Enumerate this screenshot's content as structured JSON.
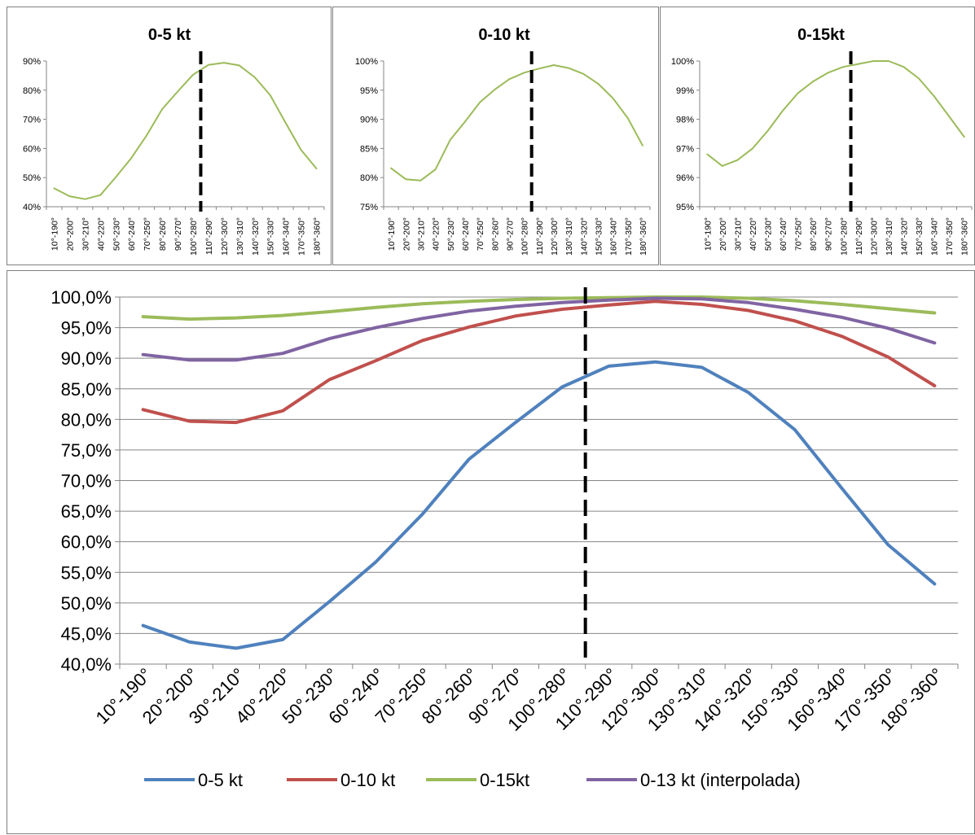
{
  "chart_data": [
    {
      "type": "line",
      "title": "0-5 kt",
      "categories": [
        "10°-190°",
        "20°-200°",
        "30°-210°",
        "40°-220°",
        "50°-230°",
        "60°-240°",
        "70°-250°",
        "80°-260°",
        "90°-270°",
        "100°-280°",
        "110°-290°",
        "120°-300°",
        "130°-310°",
        "140°-320°",
        "150°-330°",
        "160°-340°",
        "170°-350°",
        "180°-360°"
      ],
      "y_ticks": [
        "90%",
        "80%",
        "70%",
        "60%",
        "50%",
        "40%"
      ],
      "ylim": [
        40,
        90
      ],
      "series": [
        {
          "color": "#9bbb59",
          "values": [
            46.3,
            43.6,
            42.6,
            44.0,
            50.2,
            56.7,
            64.5,
            73.5,
            79.5,
            85.3,
            88.7,
            89.4,
            88.5,
            84.4,
            78.3,
            68.8,
            59.5,
            53.1
          ]
        }
      ],
      "marker_line": {
        "after_category": "100°-280°",
        "style": "dashed",
        "color": "#000000"
      }
    },
    {
      "type": "line",
      "title": "0-10 kt",
      "categories": [
        "10°-190°",
        "20°-200°",
        "30°-210°",
        "40°-220°",
        "50°-230°",
        "60°-240°",
        "70°-250°",
        "80°-260°",
        "90°-270°",
        "100°-280°",
        "110°-290°",
        "120°-300°",
        "130°-310°",
        "140°-320°",
        "150°-330°",
        "160°-340°",
        "170°-350°",
        "180°-360°"
      ],
      "y_ticks": [
        "100%",
        "95%",
        "90%",
        "85%",
        "80%",
        "75%"
      ],
      "ylim": [
        75,
        100
      ],
      "series": [
        {
          "color": "#9bbb59",
          "values": [
            81.6,
            79.7,
            79.5,
            81.4,
            86.5,
            89.6,
            92.9,
            95.1,
            96.9,
            98.0,
            98.7,
            99.3,
            98.8,
            97.8,
            96.1,
            93.6,
            90.2,
            85.5
          ]
        }
      ],
      "marker_line": {
        "after_category": "100°-280°",
        "style": "dashed",
        "color": "#000000"
      }
    },
    {
      "type": "line",
      "title": "0-15kt",
      "categories": [
        "10°-190°",
        "20°-200°",
        "30°-210°",
        "40°-220°",
        "50°-230°",
        "60°-240°",
        "70°-250°",
        "80°-260°",
        "90°-270°",
        "100°-280°",
        "110°-290°",
        "120°-300°",
        "130°-310°",
        "140°-320°",
        "150°-330°",
        "160°-340°",
        "170°-350°",
        "180°-360°"
      ],
      "y_ticks": [
        "100%",
        "99%",
        "98%",
        "97%",
        "96%",
        "95%"
      ],
      "ylim": [
        95,
        100
      ],
      "series": [
        {
          "color": "#9bbb59",
          "values": [
            96.8,
            96.4,
            96.6,
            97.0,
            97.6,
            98.3,
            98.9,
            99.3,
            99.6,
            99.8,
            99.9,
            100.0,
            100.0,
            99.8,
            99.4,
            98.8,
            98.1,
            97.4
          ]
        }
      ],
      "marker_line": {
        "after_category": "100°-280°",
        "style": "dashed",
        "color": "#000000"
      }
    },
    {
      "type": "line",
      "title": "",
      "categories": [
        "10°-190°",
        "20°-200°",
        "30°-210°",
        "40°-220°",
        "50°-230°",
        "60°-240°",
        "70°-250°",
        "80°-260°",
        "90°-270°",
        "100°-280°",
        "110°-290°",
        "120°-300°",
        "130°-310°",
        "140°-320°",
        "150°-330°",
        "160°-340°",
        "170°-350°",
        "180°-360°"
      ],
      "y_ticks": [
        "100,0%",
        "95,0%",
        "90,0%",
        "85,0%",
        "80,0%",
        "75,0%",
        "70,0%",
        "65,0%",
        "60,0%",
        "55,0%",
        "50,0%",
        "45,0%",
        "40,0%"
      ],
      "ylim": [
        40,
        100
      ],
      "grid": true,
      "legend_position": "bottom",
      "series": [
        {
          "name": "0-5 kt",
          "color": "#4f81bd",
          "values": [
            46.3,
            43.6,
            42.6,
            44.0,
            50.2,
            56.7,
            64.5,
            73.5,
            79.5,
            85.3,
            88.7,
            89.4,
            88.5,
            84.4,
            78.3,
            68.8,
            59.5,
            53.1
          ]
        },
        {
          "name": "0-10 kt",
          "color": "#c0504d",
          "values": [
            81.6,
            79.7,
            79.5,
            81.4,
            86.5,
            89.6,
            92.9,
            95.1,
            96.9,
            98.0,
            98.7,
            99.3,
            98.8,
            97.8,
            96.1,
            93.6,
            90.2,
            85.5
          ]
        },
        {
          "name": "0-15kt",
          "color": "#9bbb59",
          "values": [
            96.8,
            96.4,
            96.6,
            97.0,
            97.6,
            98.3,
            98.9,
            99.3,
            99.6,
            99.8,
            99.9,
            100.0,
            100.0,
            99.8,
            99.4,
            98.8,
            98.1,
            97.4
          ]
        },
        {
          "name": "0-13 kt (interpolada)",
          "color": "#8064a2",
          "values": [
            90.6,
            89.7,
            89.7,
            90.8,
            93.2,
            95.0,
            96.5,
            97.7,
            98.5,
            99.1,
            99.5,
            99.8,
            99.7,
            99.1,
            98.0,
            96.7,
            94.9,
            92.5
          ]
        }
      ],
      "marker_line": {
        "after_category": "100°-280°",
        "style": "dashed",
        "color": "#000000"
      }
    }
  ]
}
